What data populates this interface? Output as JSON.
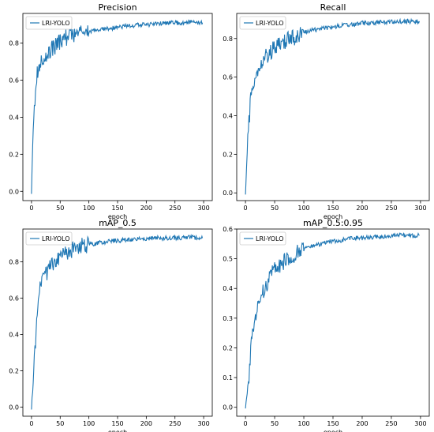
{
  "chart_data": [
    {
      "type": "line",
      "title": "Precision",
      "xlabel": "epoch",
      "ylabel": "",
      "xlim": [
        -15,
        315
      ],
      "ylim": [
        -0.05,
        0.96
      ],
      "xticks": [
        0,
        50,
        100,
        150,
        200,
        250,
        300
      ],
      "yticks": [
        0.0,
        0.2,
        0.4,
        0.6,
        0.8
      ],
      "ytick_labels": [
        "0.0",
        "0.2",
        "0.4",
        "0.6",
        "0.8"
      ],
      "legend": "top-left",
      "series": [
        {
          "name": "LRI-YOLO",
          "color": "#1f77b4",
          "x": [
            0,
            2,
            4,
            6,
            8,
            10,
            13,
            16,
            20,
            25,
            30,
            35,
            40,
            45,
            50,
            55,
            60,
            70,
            80,
            90,
            100,
            110,
            120,
            130,
            140,
            150,
            160,
            170,
            180,
            190,
            200,
            210,
            220,
            230,
            240,
            250,
            260,
            270,
            280,
            290,
            298
          ],
          "values": [
            0.0,
            0.24,
            0.4,
            0.45,
            0.6,
            0.63,
            0.66,
            0.7,
            0.72,
            0.74,
            0.75,
            0.77,
            0.78,
            0.8,
            0.81,
            0.82,
            0.83,
            0.84,
            0.85,
            0.86,
            0.86,
            0.87,
            0.87,
            0.88,
            0.88,
            0.885,
            0.89,
            0.89,
            0.895,
            0.9,
            0.9,
            0.9,
            0.905,
            0.905,
            0.91,
            0.91,
            0.91,
            0.915,
            0.915,
            0.91,
            0.91
          ]
        }
      ]
    },
    {
      "type": "line",
      "title": "Recall",
      "xlabel": "epoch",
      "ylabel": "",
      "xlim": [
        -15,
        315
      ],
      "ylim": [
        -0.04,
        0.93
      ],
      "xticks": [
        0,
        50,
        100,
        150,
        200,
        250,
        300
      ],
      "yticks": [
        0.0,
        0.2,
        0.4,
        0.6,
        0.8
      ],
      "ytick_labels": [
        "0.0",
        "0.2",
        "0.4",
        "0.6",
        "0.8"
      ],
      "legend": "top-left",
      "series": [
        {
          "name": "LRI-YOLO",
          "color": "#1f77b4",
          "x": [
            0,
            2,
            4,
            6,
            8,
            10,
            13,
            16,
            20,
            25,
            30,
            35,
            40,
            45,
            50,
            55,
            60,
            70,
            80,
            90,
            100,
            110,
            120,
            130,
            140,
            150,
            160,
            170,
            180,
            190,
            200,
            210,
            220,
            230,
            240,
            250,
            260,
            270,
            280,
            290,
            298
          ],
          "values": [
            0.0,
            0.14,
            0.3,
            0.36,
            0.45,
            0.52,
            0.57,
            0.6,
            0.63,
            0.66,
            0.69,
            0.71,
            0.72,
            0.74,
            0.75,
            0.76,
            0.77,
            0.79,
            0.8,
            0.82,
            0.83,
            0.84,
            0.845,
            0.85,
            0.855,
            0.86,
            0.865,
            0.87,
            0.87,
            0.875,
            0.88,
            0.88,
            0.88,
            0.885,
            0.885,
            0.885,
            0.89,
            0.885,
            0.89,
            0.885,
            0.89
          ]
        }
      ]
    },
    {
      "type": "line",
      "title": "mAP_0.5",
      "xlabel": "epoch",
      "ylabel": "",
      "xlim": [
        -15,
        315
      ],
      "ylim": [
        -0.05,
        0.98
      ],
      "xticks": [
        0,
        50,
        100,
        150,
        200,
        250,
        300
      ],
      "yticks": [
        0.0,
        0.2,
        0.4,
        0.6,
        0.8
      ],
      "ytick_labels": [
        "0.0",
        "0.2",
        "0.4",
        "0.6",
        "0.8"
      ],
      "legend": "top-left",
      "series": [
        {
          "name": "LRI-YOLO",
          "color": "#1f77b4",
          "x": [
            0,
            2,
            4,
            6,
            8,
            10,
            13,
            16,
            20,
            25,
            30,
            35,
            40,
            45,
            50,
            55,
            60,
            70,
            80,
            90,
            100,
            110,
            120,
            130,
            140,
            150,
            160,
            170,
            180,
            190,
            200,
            210,
            220,
            230,
            240,
            250,
            260,
            270,
            280,
            290,
            298
          ],
          "values": [
            0.0,
            0.08,
            0.2,
            0.3,
            0.42,
            0.55,
            0.62,
            0.66,
            0.7,
            0.73,
            0.76,
            0.78,
            0.8,
            0.82,
            0.83,
            0.84,
            0.85,
            0.86,
            0.87,
            0.89,
            0.895,
            0.9,
            0.905,
            0.91,
            0.915,
            0.915,
            0.92,
            0.92,
            0.925,
            0.925,
            0.925,
            0.93,
            0.93,
            0.93,
            0.93,
            0.93,
            0.93,
            0.935,
            0.935,
            0.93,
            0.93
          ]
        }
      ]
    },
    {
      "type": "line",
      "title": "mAP_0.5:0.95",
      "xlabel": "epoch",
      "ylabel": "",
      "xlim": [
        -15,
        315
      ],
      "ylim": [
        -0.03,
        0.6
      ],
      "xticks": [
        0,
        50,
        100,
        150,
        200,
        250,
        300
      ],
      "yticks": [
        0.0,
        0.1,
        0.2,
        0.3,
        0.4,
        0.5,
        0.6
      ],
      "ytick_labels": [
        "0.0",
        "0.1",
        "0.2",
        "0.3",
        "0.4",
        "0.5",
        "0.6"
      ],
      "legend": "top-left",
      "series": [
        {
          "name": "LRI-YOLO",
          "color": "#1f77b4",
          "x": [
            0,
            2,
            4,
            6,
            8,
            10,
            13,
            16,
            20,
            25,
            30,
            35,
            40,
            45,
            50,
            55,
            60,
            70,
            80,
            90,
            100,
            110,
            120,
            130,
            140,
            150,
            160,
            170,
            180,
            190,
            200,
            210,
            220,
            230,
            240,
            250,
            260,
            270,
            280,
            290,
            298
          ],
          "values": [
            0.0,
            0.03,
            0.07,
            0.1,
            0.16,
            0.22,
            0.27,
            0.3,
            0.33,
            0.36,
            0.39,
            0.41,
            0.43,
            0.45,
            0.46,
            0.47,
            0.48,
            0.5,
            0.51,
            0.52,
            0.53,
            0.54,
            0.545,
            0.55,
            0.555,
            0.56,
            0.56,
            0.565,
            0.57,
            0.57,
            0.57,
            0.572,
            0.574,
            0.575,
            0.576,
            0.577,
            0.578,
            0.578,
            0.579,
            0.578,
            0.578
          ]
        }
      ]
    }
  ]
}
